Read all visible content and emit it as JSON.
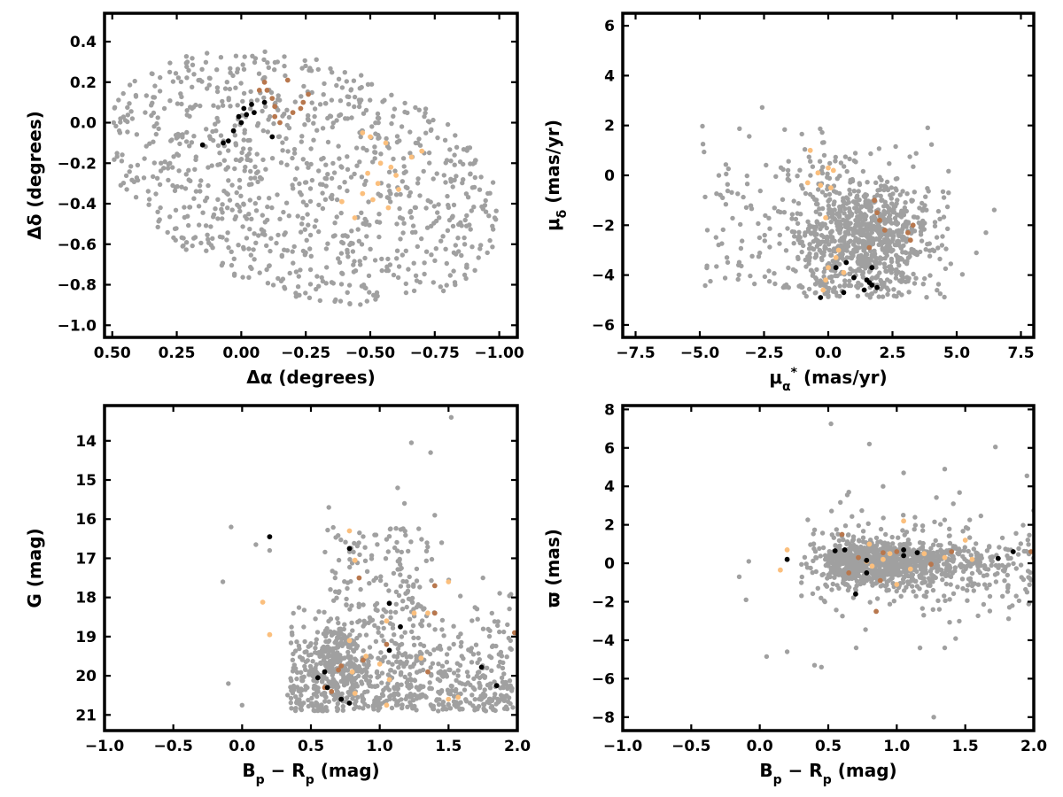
{
  "colors": {
    "field": "#a0a0a0",
    "group_black": "#000000",
    "group_brown": "#b8774d",
    "group_orange": "#fbbf7d"
  },
  "chart_data": [
    {
      "type": "scatter",
      "name": "sky-positions",
      "xlabel": "Δα (degrees)",
      "ylabel": "Δδ (degrees)",
      "xlim": [
        0.53,
        -1.07
      ],
      "ylim": [
        -1.06,
        0.54
      ],
      "xticks": [
        "0.50",
        "0.25",
        "0.00",
        "−0.25",
        "−0.50",
        "−0.75",
        "−1.00"
      ],
      "xtick_values": [
        0.5,
        0.25,
        0.0,
        -0.25,
        -0.5,
        -0.75,
        -1.0
      ],
      "yticks": [
        "0.4",
        "0.2",
        "0.0",
        "−0.2",
        "−0.4",
        "−0.6",
        "−0.8",
        "−1.0"
      ],
      "ytick_values": [
        0.4,
        0.2,
        0.0,
        -0.2,
        -0.4,
        -0.6,
        -0.8,
        -1.0
      ],
      "series": [
        {
          "color": "black",
          "points": [
            [
              -0.01,
              0.07
            ],
            [
              0.01,
              0.03
            ],
            [
              0.0,
              0.0
            ],
            [
              -0.04,
              0.09
            ],
            [
              0.03,
              -0.04
            ],
            [
              -0.05,
              0.05
            ],
            [
              -0.09,
              0.1
            ],
            [
              -0.12,
              -0.07
            ],
            [
              0.05,
              -0.09
            ],
            [
              0.07,
              -0.1
            ],
            [
              0.15,
              -0.11
            ],
            [
              -0.02,
              0.04
            ]
          ]
        },
        {
          "color": "brown",
          "points": [
            [
              -0.09,
              0.2
            ],
            [
              -0.1,
              0.16
            ],
            [
              -0.12,
              0.12
            ],
            [
              -0.13,
              0.08
            ],
            [
              -0.18,
              0.21
            ],
            [
              -0.2,
              0.05
            ],
            [
              -0.24,
              0.1
            ],
            [
              -0.26,
              0.14
            ],
            [
              -0.15,
              0.0
            ],
            [
              -0.13,
              0.03
            ],
            [
              -0.07,
              0.16
            ],
            [
              -0.23,
              0.07
            ]
          ]
        },
        {
          "color": "orange",
          "points": [
            [
              -0.47,
              -0.05
            ],
            [
              -0.5,
              -0.07
            ],
            [
              -0.56,
              -0.1
            ],
            [
              -0.54,
              -0.2
            ],
            [
              -0.6,
              -0.26
            ],
            [
              -0.66,
              -0.17
            ],
            [
              -0.7,
              -0.14
            ],
            [
              -0.47,
              -0.35
            ],
            [
              -0.51,
              -0.38
            ],
            [
              -0.57,
              -0.42
            ],
            [
              -0.44,
              -0.47
            ],
            [
              -0.39,
              -0.39
            ],
            [
              -0.61,
              -0.33
            ],
            [
              -0.53,
              -0.3
            ],
            [
              -0.49,
              -0.25
            ],
            [
              -0.58,
              -0.22
            ]
          ]
        }
      ]
    },
    {
      "type": "scatter",
      "name": "proper-motion",
      "xlabel": "μα* (mas/yr)",
      "ylabel": "μδ (mas/yr)",
      "xlim": [
        -8.0,
        8.0
      ],
      "ylim": [
        -6.5,
        6.5
      ],
      "xticks": [
        "−7.5",
        "−5.0",
        "−2.5",
        "0.0",
        "2.5",
        "5.0",
        "7.5"
      ],
      "xtick_values": [
        -7.5,
        -5.0,
        -2.5,
        0.0,
        2.5,
        5.0,
        7.5
      ],
      "yticks": [
        "6",
        "4",
        "2",
        "0",
        "−2",
        "−4",
        "−6"
      ],
      "ytick_values": [
        6,
        4,
        2,
        0,
        -2,
        -4,
        -6
      ],
      "series": [
        {
          "color": "black",
          "points": [
            [
              0.3,
              -3.7
            ],
            [
              0.7,
              -3.5
            ],
            [
              1.0,
              -4.1
            ],
            [
              1.4,
              -4.6
            ],
            [
              1.6,
              -4.3
            ],
            [
              1.7,
              -4.4
            ],
            [
              1.9,
              -4.5
            ],
            [
              1.7,
              -3.7
            ],
            [
              0.6,
              -4.7
            ],
            [
              -0.3,
              -4.9
            ],
            [
              1.5,
              -4.2
            ]
          ]
        },
        {
          "color": "brown",
          "points": [
            [
              1.9,
              -1.5
            ],
            [
              2.2,
              -2.2
            ],
            [
              1.6,
              -2.9
            ],
            [
              3.1,
              -2.3
            ],
            [
              3.3,
              -2.0
            ],
            [
              1.8,
              -1.0
            ],
            [
              2.0,
              -1.8
            ],
            [
              3.2,
              -2.6
            ]
          ]
        },
        {
          "color": "orange",
          "points": [
            [
              -0.7,
              1.0
            ],
            [
              0.0,
              0.3
            ],
            [
              -0.3,
              -0.4
            ],
            [
              -0.8,
              -0.3
            ],
            [
              0.1,
              -0.5
            ],
            [
              -0.4,
              0.1
            ],
            [
              0.4,
              -3.0
            ],
            [
              0.3,
              -3.3
            ],
            [
              -0.1,
              -4.2
            ],
            [
              -0.2,
              -4.6
            ],
            [
              0.0,
              -3.7
            ],
            [
              0.6,
              -3.9
            ],
            [
              0.2,
              0.2
            ],
            [
              -0.1,
              -1.7
            ]
          ]
        }
      ]
    },
    {
      "type": "scatter",
      "name": "colour-magnitude",
      "xlabel": "Bp − Rp (mag)",
      "ylabel": "G (mag)",
      "xlim": [
        -1.0,
        2.0
      ],
      "ylim": [
        21.4,
        13.1
      ],
      "xticks": [
        "−1.0",
        "−0.5",
        "0.0",
        "0.5",
        "1.0",
        "1.5",
        "2.0"
      ],
      "xtick_values": [
        -1.0,
        -0.5,
        0.0,
        0.5,
        1.0,
        1.5,
        2.0
      ],
      "yticks": [
        "21",
        "20",
        "19",
        "18",
        "17",
        "16",
        "15",
        "14"
      ],
      "ytick_values": [
        21,
        20,
        19,
        18,
        17,
        16,
        15,
        14
      ],
      "series": [
        {
          "color": "black",
          "points": [
            [
              0.2,
              16.45
            ],
            [
              0.78,
              16.75
            ],
            [
              1.07,
              18.15
            ],
            [
              1.07,
              19.35
            ],
            [
              1.15,
              18.75
            ],
            [
              0.72,
              20.6
            ],
            [
              0.78,
              20.7
            ],
            [
              0.55,
              20.05
            ],
            [
              0.6,
              19.9
            ],
            [
              0.62,
              20.3
            ],
            [
              1.74,
              19.78
            ],
            [
              1.85,
              20.25
            ]
          ]
        },
        {
          "color": "brown",
          "points": [
            [
              0.6,
              20.3
            ],
            [
              0.65,
              20.4
            ],
            [
              0.72,
              19.75
            ],
            [
              0.88,
              19.6
            ],
            [
              1.05,
              19.2
            ],
            [
              0.85,
              17.5
            ],
            [
              1.35,
              19.9
            ],
            [
              1.4,
              18.4
            ],
            [
              1.4,
              17.7
            ],
            [
              1.98,
              18.9
            ],
            [
              0.7,
              19.85
            ]
          ]
        },
        {
          "color": "orange",
          "points": [
            [
              0.15,
              18.12
            ],
            [
              0.2,
              18.95
            ],
            [
              0.78,
              16.3
            ],
            [
              0.82,
              17.05
            ],
            [
              0.78,
              19.1
            ],
            [
              0.8,
              19.9
            ],
            [
              0.82,
              20.45
            ],
            [
              0.9,
              19.5
            ],
            [
              1.0,
              19.7
            ],
            [
              1.05,
              20.75
            ],
            [
              1.05,
              18.6
            ],
            [
              1.25,
              18.4
            ],
            [
              1.3,
              19.55
            ],
            [
              1.35,
              18.4
            ],
            [
              1.5,
              17.6
            ],
            [
              1.5,
              20.6
            ],
            [
              1.57,
              20.55
            ],
            [
              1.07,
              20.1
            ]
          ]
        }
      ]
    },
    {
      "type": "scatter",
      "name": "parallax-colour",
      "xlabel": "Bp − Rp (mag)",
      "ylabel": "ϖ (mas)",
      "xlim": [
        -1.0,
        2.0
      ],
      "ylim": [
        -8.7,
        8.2
      ],
      "xticks": [
        "−1.0",
        "−0.5",
        "0.0",
        "0.5",
        "1.0",
        "1.5",
        "2.0"
      ],
      "xtick_values": [
        -1.0,
        -0.5,
        0.0,
        0.5,
        1.0,
        1.5,
        2.0
      ],
      "yticks": [
        "8",
        "6",
        "4",
        "2",
        "0",
        "−2",
        "−4",
        "−6",
        "−8"
      ],
      "ytick_values": [
        8,
        6,
        4,
        2,
        0,
        -2,
        -4,
        -6,
        -8
      ],
      "series": [
        {
          "color": "black",
          "points": [
            [
              0.2,
              0.2
            ],
            [
              0.55,
              0.65
            ],
            [
              0.62,
              0.7
            ],
            [
              0.7,
              -1.6
            ],
            [
              0.78,
              0.15
            ],
            [
              0.78,
              -0.5
            ],
            [
              1.05,
              0.7
            ],
            [
              1.05,
              0.4
            ],
            [
              1.15,
              0.55
            ],
            [
              1.74,
              0.25
            ],
            [
              1.85,
              0.6
            ]
          ]
        },
        {
          "color": "brown",
          "points": [
            [
              0.6,
              1.5
            ],
            [
              0.65,
              -0.5
            ],
            [
              0.85,
              -2.5
            ],
            [
              0.9,
              0.55
            ],
            [
              1.0,
              0.6
            ],
            [
              1.4,
              0.6
            ],
            [
              1.98,
              0.6
            ],
            [
              0.72,
              0.3
            ],
            [
              1.25,
              -0.05
            ],
            [
              0.88,
              -0.9
            ]
          ]
        },
        {
          "color": "orange",
          "points": [
            [
              0.15,
              -0.35
            ],
            [
              0.2,
              0.7
            ],
            [
              0.78,
              0.1
            ],
            [
              0.82,
              -0.15
            ],
            [
              0.8,
              1.0
            ],
            [
              0.9,
              0.2
            ],
            [
              1.0,
              -1.1
            ],
            [
              1.05,
              2.2
            ],
            [
              1.2,
              0.5
            ],
            [
              1.35,
              0.3
            ],
            [
              1.5,
              1.2
            ],
            [
              1.55,
              0.2
            ],
            [
              0.95,
              0.5
            ],
            [
              1.1,
              -0.3
            ]
          ]
        }
      ]
    }
  ]
}
